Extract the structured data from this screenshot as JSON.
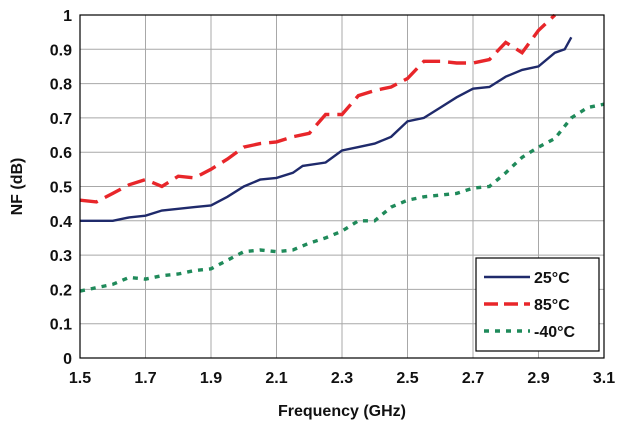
{
  "chart_data": {
    "type": "line",
    "title": "",
    "xlabel": "Frequency (GHz)",
    "ylabel": "NF (dB)",
    "xlim": [
      1.5,
      3.1
    ],
    "ylim": [
      0,
      1
    ],
    "xticks": [
      "1.5",
      "1.7",
      "1.9",
      "2.1",
      "2.3",
      "2.5",
      "2.7",
      "2.9",
      "3.1"
    ],
    "yticks": [
      "0",
      "0.1",
      "0.2",
      "0.3",
      "0.4",
      "0.5",
      "0.6",
      "0.7",
      "0.8",
      "0.9",
      "1"
    ],
    "grid": true,
    "legend_position": "bottom-right",
    "series": [
      {
        "name": "25°C",
        "color": "#1f2a6b",
        "style": "solid",
        "points": [
          [
            1.5,
            0.4
          ],
          [
            1.53,
            0.4
          ],
          [
            1.56,
            0.4
          ],
          [
            1.6,
            0.4
          ],
          [
            1.65,
            0.41
          ],
          [
            1.7,
            0.415
          ],
          [
            1.75,
            0.43
          ],
          [
            1.8,
            0.435
          ],
          [
            1.85,
            0.44
          ],
          [
            1.9,
            0.445
          ],
          [
            1.95,
            0.47
          ],
          [
            2.0,
            0.5
          ],
          [
            2.05,
            0.52
          ],
          [
            2.1,
            0.525
          ],
          [
            2.15,
            0.54
          ],
          [
            2.18,
            0.56
          ],
          [
            2.25,
            0.57
          ],
          [
            2.3,
            0.605
          ],
          [
            2.35,
            0.615
          ],
          [
            2.4,
            0.625
          ],
          [
            2.45,
            0.645
          ],
          [
            2.5,
            0.69
          ],
          [
            2.55,
            0.7
          ],
          [
            2.6,
            0.73
          ],
          [
            2.65,
            0.76
          ],
          [
            2.7,
            0.785
          ],
          [
            2.75,
            0.79
          ],
          [
            2.8,
            0.82
          ],
          [
            2.85,
            0.84
          ],
          [
            2.9,
            0.85
          ],
          [
            2.95,
            0.89
          ],
          [
            2.98,
            0.9
          ],
          [
            3.0,
            0.935
          ]
        ]
      },
      {
        "name": "85°C",
        "color": "#e8262a",
        "style": "long-dash",
        "points": [
          [
            1.5,
            0.46
          ],
          [
            1.55,
            0.455
          ],
          [
            1.6,
            0.48
          ],
          [
            1.65,
            0.505
          ],
          [
            1.7,
            0.52
          ],
          [
            1.75,
            0.5
          ],
          [
            1.8,
            0.53
          ],
          [
            1.85,
            0.525
          ],
          [
            1.9,
            0.55
          ],
          [
            1.95,
            0.58
          ],
          [
            2.0,
            0.615
          ],
          [
            2.05,
            0.625
          ],
          [
            2.1,
            0.63
          ],
          [
            2.15,
            0.645
          ],
          [
            2.2,
            0.655
          ],
          [
            2.25,
            0.71
          ],
          [
            2.3,
            0.71
          ],
          [
            2.35,
            0.765
          ],
          [
            2.4,
            0.78
          ],
          [
            2.45,
            0.79
          ],
          [
            2.5,
            0.815
          ],
          [
            2.55,
            0.865
          ],
          [
            2.6,
            0.865
          ],
          [
            2.65,
            0.86
          ],
          [
            2.7,
            0.86
          ],
          [
            2.75,
            0.87
          ],
          [
            2.8,
            0.92
          ],
          [
            2.85,
            0.89
          ],
          [
            2.9,
            0.955
          ],
          [
            2.95,
            1.0
          ]
        ]
      },
      {
        "name": "-40°C",
        "color": "#1f8a5a",
        "style": "dotted",
        "points": [
          [
            1.5,
            0.195
          ],
          [
            1.55,
            0.205
          ],
          [
            1.6,
            0.215
          ],
          [
            1.65,
            0.235
          ],
          [
            1.7,
            0.23
          ],
          [
            1.75,
            0.24
          ],
          [
            1.8,
            0.245
          ],
          [
            1.85,
            0.255
          ],
          [
            1.9,
            0.26
          ],
          [
            1.95,
            0.285
          ],
          [
            2.0,
            0.31
          ],
          [
            2.05,
            0.315
          ],
          [
            2.1,
            0.31
          ],
          [
            2.15,
            0.315
          ],
          [
            2.2,
            0.335
          ],
          [
            2.25,
            0.35
          ],
          [
            2.3,
            0.37
          ],
          [
            2.35,
            0.4
          ],
          [
            2.4,
            0.4
          ],
          [
            2.45,
            0.44
          ],
          [
            2.5,
            0.46
          ],
          [
            2.55,
            0.47
          ],
          [
            2.6,
            0.475
          ],
          [
            2.65,
            0.48
          ],
          [
            2.7,
            0.495
          ],
          [
            2.75,
            0.5
          ],
          [
            2.8,
            0.54
          ],
          [
            2.85,
            0.585
          ],
          [
            2.9,
            0.615
          ],
          [
            2.95,
            0.64
          ],
          [
            3.0,
            0.7
          ],
          [
            3.05,
            0.73
          ],
          [
            3.1,
            0.74
          ]
        ]
      }
    ]
  }
}
